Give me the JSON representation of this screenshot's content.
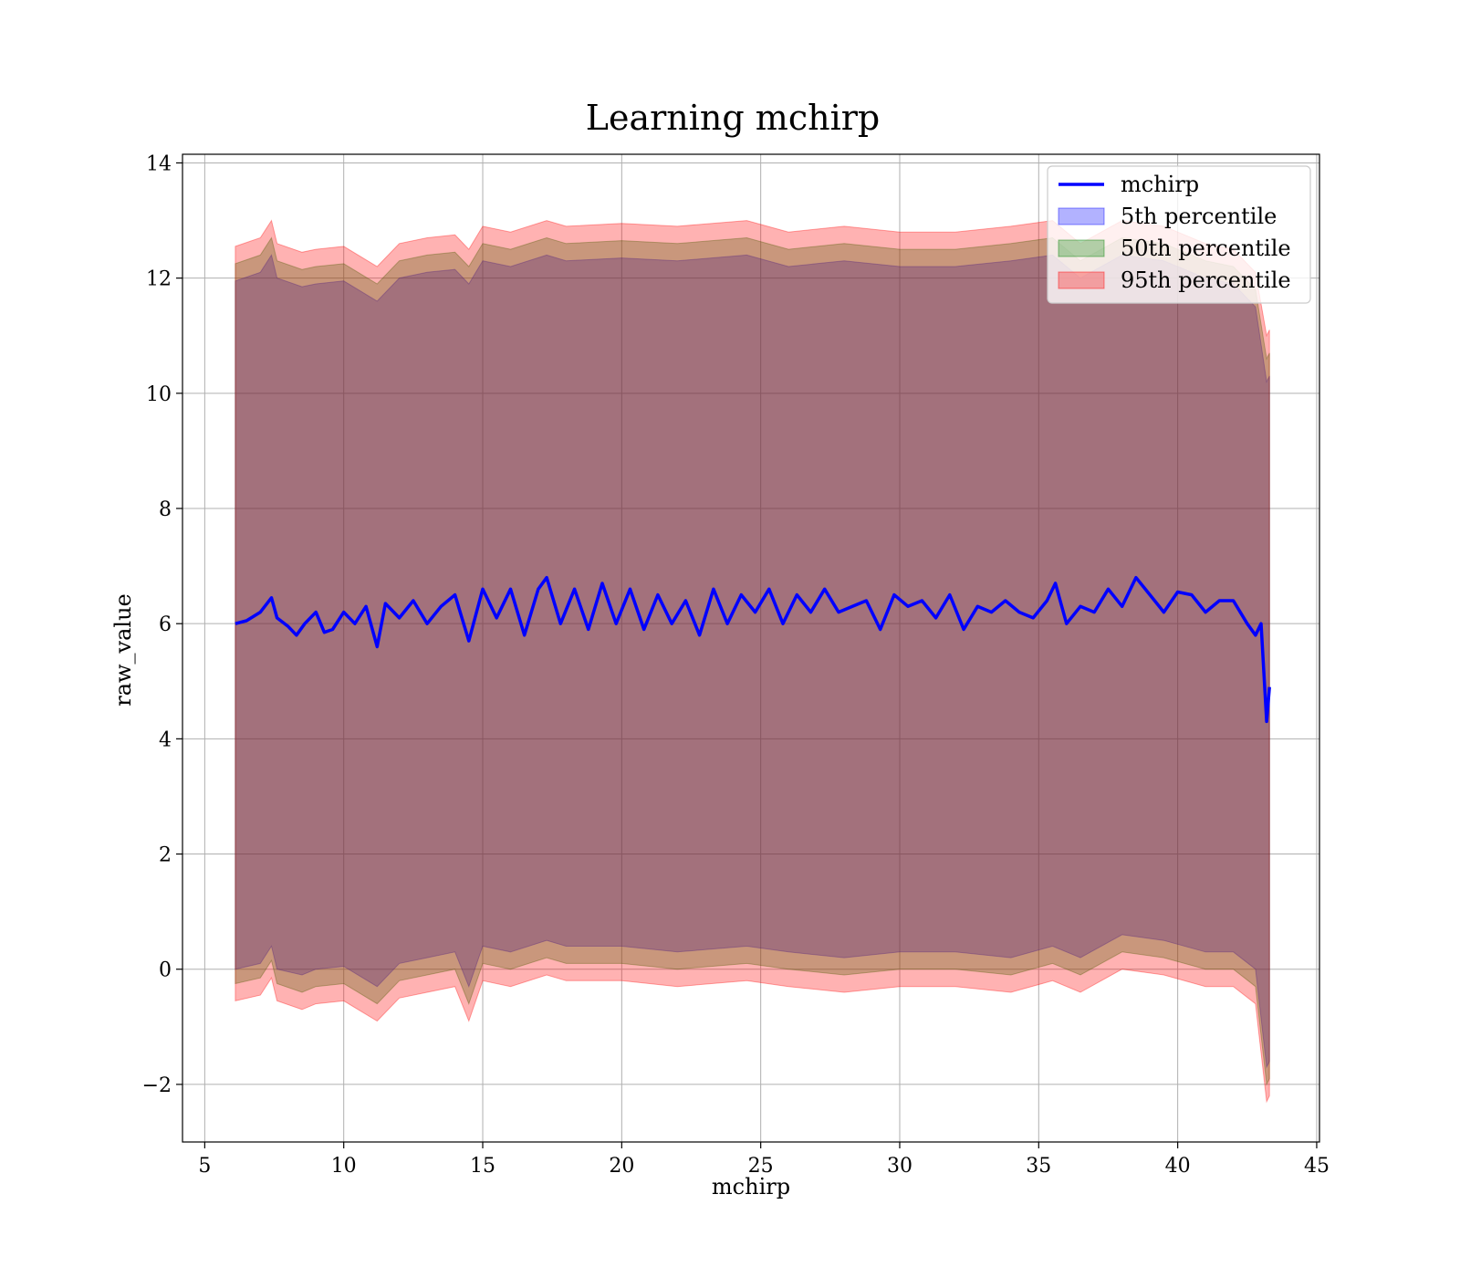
{
  "chart_data": {
    "type": "line",
    "title": "Learning mchirp",
    "xlabel": "mchirp",
    "ylabel": "raw_value",
    "xlim": [
      4.2,
      45.1
    ],
    "ylim": [
      -3.0,
      14.15
    ],
    "xticks": [
      5,
      10,
      15,
      20,
      25,
      30,
      35,
      40,
      45
    ],
    "yticks": [
      -2,
      0,
      2,
      4,
      6,
      8,
      10,
      12,
      14
    ],
    "xtick_labels": [
      "5",
      "10",
      "15",
      "20",
      "25",
      "30",
      "35",
      "40",
      "45"
    ],
    "ytick_labels": [
      "−2",
      "0",
      "2",
      "4",
      "6",
      "8",
      "10",
      "12",
      "14"
    ],
    "grid": true,
    "legend_position": "top-right",
    "series": [
      {
        "name": "mchirp",
        "kind": "line",
        "color": "#0000ff",
        "x": [
          6.1,
          6.5,
          7.0,
          7.4,
          7.6,
          8.0,
          8.3,
          8.6,
          9.0,
          9.3,
          9.6,
          10.0,
          10.4,
          10.8,
          11.2,
          11.5,
          12.0,
          12.5,
          13.0,
          13.5,
          14.0,
          14.5,
          15.0,
          15.5,
          16.0,
          16.5,
          17.0,
          17.3,
          17.8,
          18.3,
          18.8,
          19.3,
          19.8,
          20.3,
          20.8,
          21.3,
          21.8,
          22.3,
          22.8,
          23.3,
          23.8,
          24.3,
          24.8,
          25.3,
          25.8,
          26.3,
          26.8,
          27.3,
          27.8,
          28.3,
          28.8,
          29.3,
          29.8,
          30.3,
          30.8,
          31.3,
          31.8,
          32.3,
          32.8,
          33.3,
          33.8,
          34.3,
          34.8,
          35.3,
          35.6,
          36.0,
          36.5,
          37.0,
          37.5,
          38.0,
          38.5,
          39.0,
          39.5,
          40.0,
          40.5,
          41.0,
          41.5,
          42.0,
          42.5,
          42.8,
          43.0,
          43.2,
          43.3
        ],
        "values": [
          6.0,
          6.05,
          6.2,
          6.45,
          6.1,
          5.95,
          5.8,
          6.0,
          6.2,
          5.85,
          5.9,
          6.2,
          6.0,
          6.3,
          5.6,
          6.35,
          6.1,
          6.4,
          6.0,
          6.3,
          6.5,
          5.7,
          6.6,
          6.1,
          6.6,
          5.8,
          6.6,
          6.8,
          6.0,
          6.6,
          5.9,
          6.7,
          6.0,
          6.6,
          5.9,
          6.5,
          6.0,
          6.4,
          5.8,
          6.6,
          6.0,
          6.5,
          6.2,
          6.6,
          6.0,
          6.5,
          6.2,
          6.6,
          6.2,
          6.3,
          6.4,
          5.9,
          6.5,
          6.3,
          6.4,
          6.1,
          6.5,
          5.9,
          6.3,
          6.2,
          6.4,
          6.2,
          6.1,
          6.4,
          6.7,
          6.0,
          6.3,
          6.2,
          6.6,
          6.3,
          6.8,
          6.5,
          6.2,
          6.55,
          6.5,
          6.2,
          6.4,
          6.4,
          6.0,
          5.8,
          6.0,
          4.3,
          4.9
        ]
      },
      {
        "name": "5th percentile",
        "kind": "band",
        "color": "#0000ff",
        "x": [
          6.1,
          7.0,
          7.4,
          7.6,
          8.5,
          9.0,
          10.0,
          11.2,
          12.0,
          13.0,
          14.0,
          14.5,
          15.0,
          16.0,
          17.3,
          18.0,
          20.0,
          22.0,
          24.5,
          26.0,
          28.0,
          30.0,
          32.0,
          34.0,
          35.5,
          36.5,
          38.0,
          39.5,
          41.0,
          42.0,
          42.8,
          43.2,
          43.3
        ],
        "upper": [
          11.95,
          12.1,
          12.4,
          12.0,
          11.85,
          11.9,
          11.95,
          11.6,
          12.0,
          12.1,
          12.15,
          11.9,
          12.3,
          12.2,
          12.4,
          12.3,
          12.35,
          12.3,
          12.4,
          12.2,
          12.3,
          12.2,
          12.2,
          12.3,
          12.4,
          12.0,
          12.4,
          12.3,
          12.0,
          11.9,
          11.5,
          10.2,
          10.3
        ],
        "lower": [
          0.0,
          0.1,
          0.4,
          0.0,
          -0.1,
          0.0,
          0.05,
          -0.3,
          0.1,
          0.2,
          0.3,
          -0.3,
          0.4,
          0.3,
          0.5,
          0.4,
          0.4,
          0.3,
          0.4,
          0.3,
          0.2,
          0.3,
          0.3,
          0.2,
          0.4,
          0.2,
          0.6,
          0.5,
          0.3,
          0.3,
          0.0,
          -1.7,
          -1.6
        ]
      },
      {
        "name": "50th percentile",
        "kind": "band",
        "color": "#008000",
        "x": [
          6.1,
          7.0,
          7.4,
          7.6,
          8.5,
          9.0,
          10.0,
          11.2,
          12.0,
          13.0,
          14.0,
          14.5,
          15.0,
          16.0,
          17.3,
          18.0,
          20.0,
          22.0,
          24.5,
          26.0,
          28.0,
          30.0,
          32.0,
          34.0,
          35.5,
          36.5,
          38.0,
          39.5,
          41.0,
          42.0,
          42.8,
          43.2,
          43.3
        ],
        "upper": [
          12.25,
          12.4,
          12.7,
          12.3,
          12.15,
          12.2,
          12.25,
          11.9,
          12.3,
          12.4,
          12.45,
          12.2,
          12.6,
          12.5,
          12.7,
          12.6,
          12.65,
          12.6,
          12.7,
          12.5,
          12.6,
          12.5,
          12.5,
          12.6,
          12.7,
          12.3,
          12.7,
          12.6,
          12.3,
          12.2,
          11.8,
          10.6,
          10.7
        ],
        "lower": [
          -0.25,
          -0.15,
          0.15,
          -0.25,
          -0.4,
          -0.3,
          -0.25,
          -0.6,
          -0.2,
          -0.1,
          0.0,
          -0.6,
          0.1,
          0.0,
          0.2,
          0.1,
          0.1,
          0.0,
          0.1,
          0.0,
          -0.1,
          0.0,
          0.0,
          -0.1,
          0.1,
          -0.1,
          0.3,
          0.2,
          0.0,
          0.0,
          -0.3,
          -2.0,
          -1.9
        ]
      },
      {
        "name": "95th percentile",
        "kind": "band",
        "color": "#ff0000",
        "x": [
          6.1,
          7.0,
          7.4,
          7.6,
          8.5,
          9.0,
          10.0,
          11.2,
          12.0,
          13.0,
          14.0,
          14.5,
          15.0,
          16.0,
          17.3,
          18.0,
          20.0,
          22.0,
          24.5,
          26.0,
          28.0,
          30.0,
          32.0,
          34.0,
          35.5,
          36.5,
          38.0,
          39.5,
          41.0,
          42.0,
          42.8,
          43.2,
          43.3
        ],
        "upper": [
          12.55,
          12.7,
          13.0,
          12.6,
          12.45,
          12.5,
          12.55,
          12.2,
          12.6,
          12.7,
          12.75,
          12.5,
          12.9,
          12.8,
          13.0,
          12.9,
          12.95,
          12.9,
          13.0,
          12.8,
          12.9,
          12.8,
          12.8,
          12.9,
          13.0,
          12.6,
          13.0,
          12.9,
          12.6,
          12.5,
          12.1,
          11.0,
          11.1
        ],
        "lower": [
          -0.55,
          -0.45,
          -0.15,
          -0.55,
          -0.7,
          -0.6,
          -0.55,
          -0.9,
          -0.5,
          -0.4,
          -0.3,
          -0.9,
          -0.2,
          -0.3,
          -0.1,
          -0.2,
          -0.2,
          -0.3,
          -0.2,
          -0.3,
          -0.4,
          -0.3,
          -0.3,
          -0.4,
          -0.2,
          -0.4,
          0.0,
          -0.1,
          -0.3,
          -0.3,
          -0.6,
          -2.3,
          -2.2
        ]
      }
    ]
  }
}
